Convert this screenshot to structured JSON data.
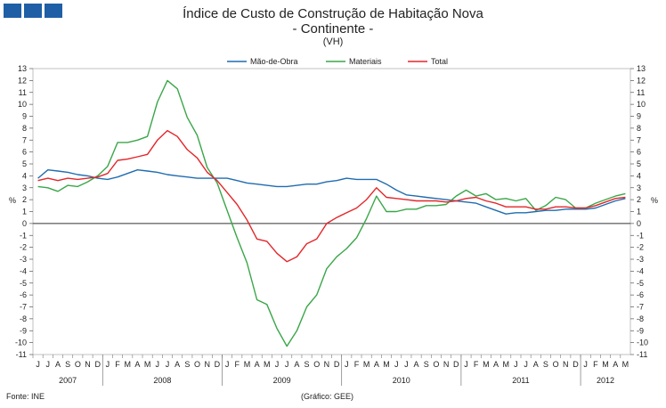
{
  "header": {
    "logo_icon": "logo-squares-icon",
    "title": "Índice de Custo de Construção de Habitação Nova",
    "subtitle": "- Continente -",
    "note": "(VH)"
  },
  "footer": {
    "source": "Fonte: INE",
    "credit": "(Gráfico: GEE)"
  },
  "chart_data": {
    "type": "line",
    "title": "Índice de Custo de Construção de Habitação Nova",
    "subtitle": "- Continente -",
    "note": "(VH)",
    "ylabel": "%",
    "ylabel_right": "%",
    "ylim": [
      -11,
      13
    ],
    "yticks": [
      13,
      12,
      11,
      10,
      9,
      8,
      7,
      6,
      5,
      4,
      3,
      2,
      1,
      0,
      -1,
      -2,
      -3,
      -4,
      -5,
      -6,
      -7,
      -8,
      -9,
      -10,
      -11
    ],
    "month_labels": [
      "J",
      "J",
      "A",
      "S",
      "O",
      "N",
      "D",
      "J",
      "F",
      "M",
      "A",
      "M",
      "J",
      "J",
      "A",
      "S",
      "O",
      "N",
      "D",
      "J",
      "F",
      "M",
      "A",
      "M",
      "J",
      "J",
      "A",
      "S",
      "O",
      "N",
      "D",
      "J",
      "F",
      "M",
      "A",
      "M",
      "J",
      "J",
      "A",
      "S",
      "O",
      "N",
      "D",
      "J",
      "F",
      "M",
      "A",
      "M",
      "J",
      "J",
      "A",
      "S",
      "O",
      "N",
      "D",
      "J",
      "F",
      "M",
      "A",
      "M"
    ],
    "years": [
      {
        "label": "2007",
        "from": 0,
        "to": 6
      },
      {
        "label": "2008",
        "from": 7,
        "to": 18
      },
      {
        "label": "2009",
        "from": 19,
        "to": 30
      },
      {
        "label": "2010",
        "from": 31,
        "to": 42
      },
      {
        "label": "2011",
        "from": 43,
        "to": 54
      },
      {
        "label": "2012",
        "from": 55,
        "to": 59
      }
    ],
    "legend_position": "top-center",
    "series": [
      {
        "name": "Mão-de-Obra",
        "color": "#1f6cb0",
        "values": [
          3.8,
          4.5,
          4.4,
          4.3,
          4.1,
          4.0,
          3.8,
          3.7,
          3.9,
          4.2,
          4.5,
          4.4,
          4.3,
          4.1,
          4.0,
          3.9,
          3.8,
          3.8,
          3.8,
          3.8,
          3.6,
          3.4,
          3.3,
          3.2,
          3.1,
          3.1,
          3.2,
          3.3,
          3.3,
          3.5,
          3.6,
          3.8,
          3.7,
          3.7,
          3.7,
          3.3,
          2.8,
          2.4,
          2.3,
          2.2,
          2.1,
          2.0,
          1.9,
          1.8,
          1.7,
          1.4,
          1.1,
          0.8,
          0.9,
          0.9,
          1.0,
          1.1,
          1.1,
          1.2,
          1.2,
          1.2,
          1.3,
          1.6,
          1.9,
          2.1
        ]
      },
      {
        "name": "Materiais",
        "color": "#3aa648",
        "values": [
          3.1,
          3.0,
          2.7,
          3.2,
          3.1,
          3.5,
          4.0,
          4.8,
          6.8,
          6.8,
          7.0,
          7.3,
          10.2,
          12.0,
          11.3,
          8.9,
          7.4,
          4.7,
          3.4,
          1.1,
          -1.2,
          -3.3,
          -6.4,
          -6.8,
          -8.8,
          -10.3,
          -9.0,
          -7.0,
          -6.0,
          -3.8,
          -2.8,
          -2.1,
          -1.2,
          0.4,
          2.3,
          1.0,
          1.0,
          1.2,
          1.2,
          1.5,
          1.5,
          1.6,
          2.3,
          2.8,
          2.3,
          2.5,
          2.0,
          2.1,
          1.9,
          2.1,
          1.1,
          1.5,
          2.2,
          2.0,
          1.3,
          1.3,
          1.7,
          2.0,
          2.3,
          2.5
        ]
      },
      {
        "name": "Total",
        "color": "#e3262a",
        "values": [
          3.6,
          3.8,
          3.6,
          3.8,
          3.7,
          3.8,
          3.9,
          4.2,
          5.3,
          5.4,
          5.6,
          5.8,
          7.0,
          7.8,
          7.3,
          6.2,
          5.5,
          4.3,
          3.6,
          2.6,
          1.6,
          0.3,
          -1.3,
          -1.5,
          -2.5,
          -3.2,
          -2.8,
          -1.7,
          -1.3,
          0.0,
          0.5,
          0.9,
          1.3,
          2.0,
          3.0,
          2.2,
          2.1,
          2.0,
          1.9,
          1.9,
          1.9,
          1.8,
          1.9,
          2.1,
          2.2,
          1.9,
          1.7,
          1.4,
          1.4,
          1.4,
          1.2,
          1.2,
          1.4,
          1.4,
          1.3,
          1.3,
          1.5,
          1.8,
          2.1,
          2.2
        ]
      }
    ]
  }
}
